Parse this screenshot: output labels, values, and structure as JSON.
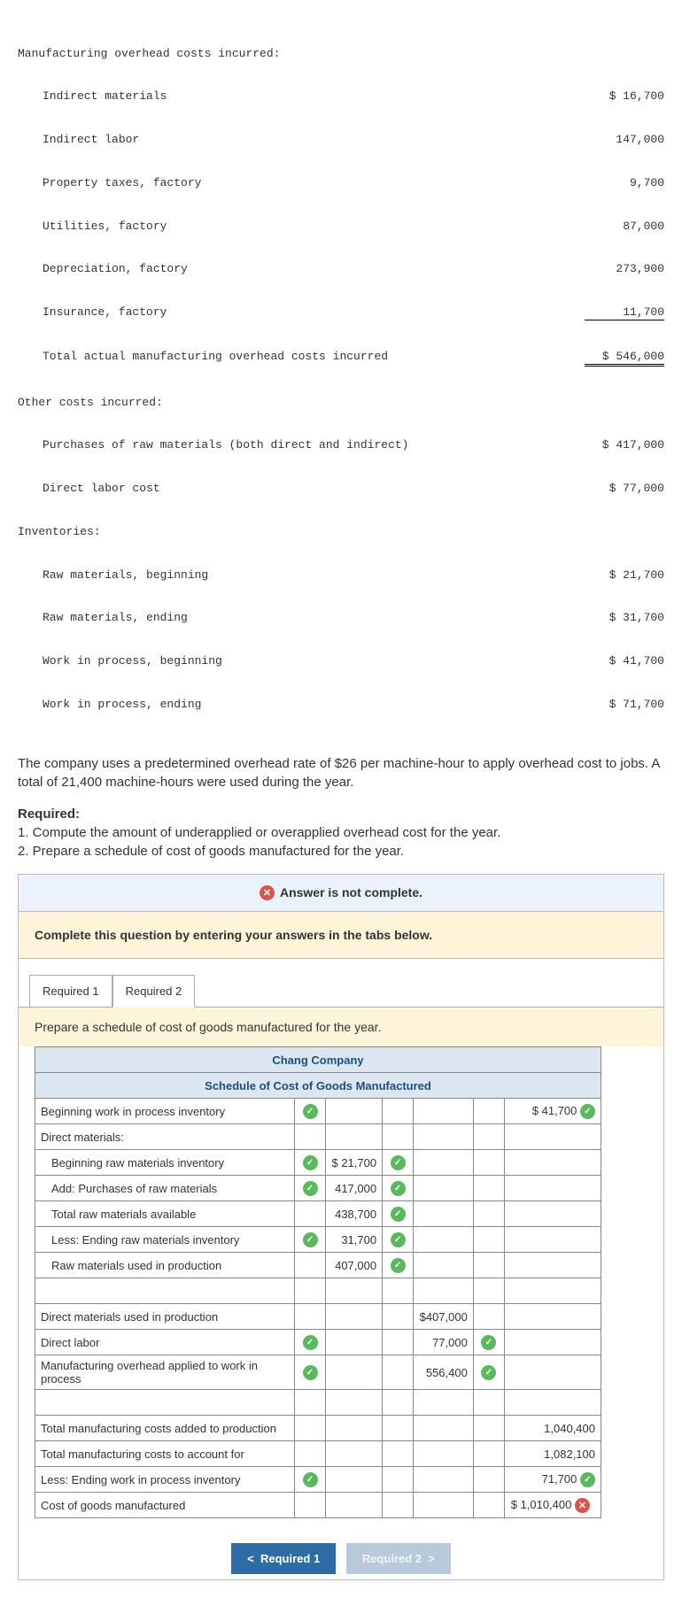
{
  "overhead": {
    "heading": "Manufacturing overhead costs incurred:",
    "items": [
      {
        "label": "Indirect materials",
        "value": "$ 16,700"
      },
      {
        "label": "Indirect labor",
        "value": "147,000"
      },
      {
        "label": "Property taxes, factory",
        "value": "9,700"
      },
      {
        "label": "Utilities, factory",
        "value": "87,000"
      },
      {
        "label": "Depreciation, factory",
        "value": "273,900"
      },
      {
        "label": "Insurance, factory",
        "value": "11,700"
      }
    ],
    "total_label": "Total actual manufacturing overhead costs incurred",
    "total_value": "$ 546,000"
  },
  "other": {
    "heading": "Other costs incurred:",
    "items": [
      {
        "label": "Purchases of raw materials (both direct and indirect)",
        "value": "$ 417,000"
      },
      {
        "label": "Direct labor cost",
        "value": "$ 77,000"
      }
    ]
  },
  "inventories": {
    "heading": "Inventories:",
    "items": [
      {
        "label": "Raw materials, beginning",
        "value": "$ 21,700"
      },
      {
        "label": "Raw materials, ending",
        "value": "$ 31,700"
      },
      {
        "label": "Work in process, beginning",
        "value": "$ 41,700"
      },
      {
        "label": "Work in process, ending",
        "value": "$ 71,700"
      }
    ]
  },
  "narrative": "The company uses a predetermined overhead rate of $26 per machine-hour to apply overhead cost to jobs. A total of 21,400 machine-hours were used during the year.",
  "required": {
    "head": "Required:",
    "r1": "1. Compute the amount of underapplied or overapplied overhead cost for the year.",
    "r2": "2. Prepare a schedule of cost of goods manufactured for the year."
  },
  "alerts": {
    "not_complete": "Answer is not complete.",
    "instruct": "Complete this question by entering your answers in the tabs below."
  },
  "tabs": {
    "t1": "Required 1",
    "t2": "Required 2"
  },
  "prompt": "Prepare a schedule of cost of goods manufactured for the year.",
  "schedule": {
    "title1": "Chang Company",
    "title2": "Schedule of Cost of Goods Manufactured",
    "rows": {
      "bwip": "Beginning work in process inventory",
      "bwip_val": "$   41,700",
      "dm_head": "Direct materials:",
      "brm": "Beginning raw materials inventory",
      "brm_val": "$   21,700",
      "addp": "Add: Purchases of raw materials",
      "addp_val": "417,000",
      "tram": "Total raw materials available",
      "tram_val": "438,700",
      "lerm": "Less: Ending raw materials inventory",
      "lerm_val": "31,700",
      "rmu": "Raw materials used in production",
      "rmu_val": "407,000",
      "dmu": "Direct materials used in production",
      "dmu_val": "$407,000",
      "dl": "Direct labor",
      "dl_val": "77,000",
      "moh": "Manufacturing overhead applied to work in process",
      "moh_val": "556,400",
      "tmc": "Total manufacturing costs added to production",
      "tmc_val": "1,040,400",
      "tmaf": "Total manufacturing costs to account for",
      "tmaf_val": "1,082,100",
      "lewip": "Less: Ending work in process inventory",
      "lewip_val": "71,700",
      "cogm": "Cost of goods manufactured",
      "cogm_val": "$ 1,010,400"
    }
  },
  "nav": {
    "back": "Required 1",
    "fwd": "Required 2"
  }
}
